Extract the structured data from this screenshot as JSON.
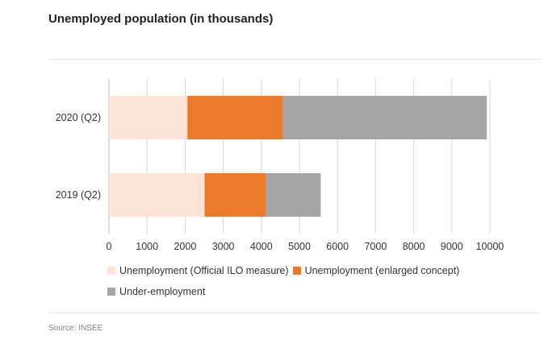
{
  "header": {
    "title": "Unemployed population (in thousands)"
  },
  "footer": {
    "source": "Source: INSEE"
  },
  "chart_data": {
    "type": "bar",
    "orientation": "horizontal",
    "stacked": true,
    "title": "Unemployed population (in thousands)",
    "categories": [
      "2020 (Q2)",
      "2019 (Q2)"
    ],
    "series": [
      {
        "name": "Unemployment (Official ILO measure)",
        "color": "#fbe3d5",
        "values": [
          2060,
          2510
        ]
      },
      {
        "name": "Unemployment (enlarged concept)",
        "color": "#ec7a2c",
        "values": [
          2510,
          1600
        ]
      },
      {
        "name": "Under-employment",
        "color": "#a5a5a5",
        "values": [
          5350,
          1450
        ]
      }
    ],
    "xlim": [
      0,
      10000
    ],
    "xticks": [
      0,
      1000,
      2000,
      3000,
      4000,
      5000,
      6000,
      7000,
      8000,
      9000,
      10000
    ],
    "grid": true,
    "legend_position": "bottom"
  }
}
